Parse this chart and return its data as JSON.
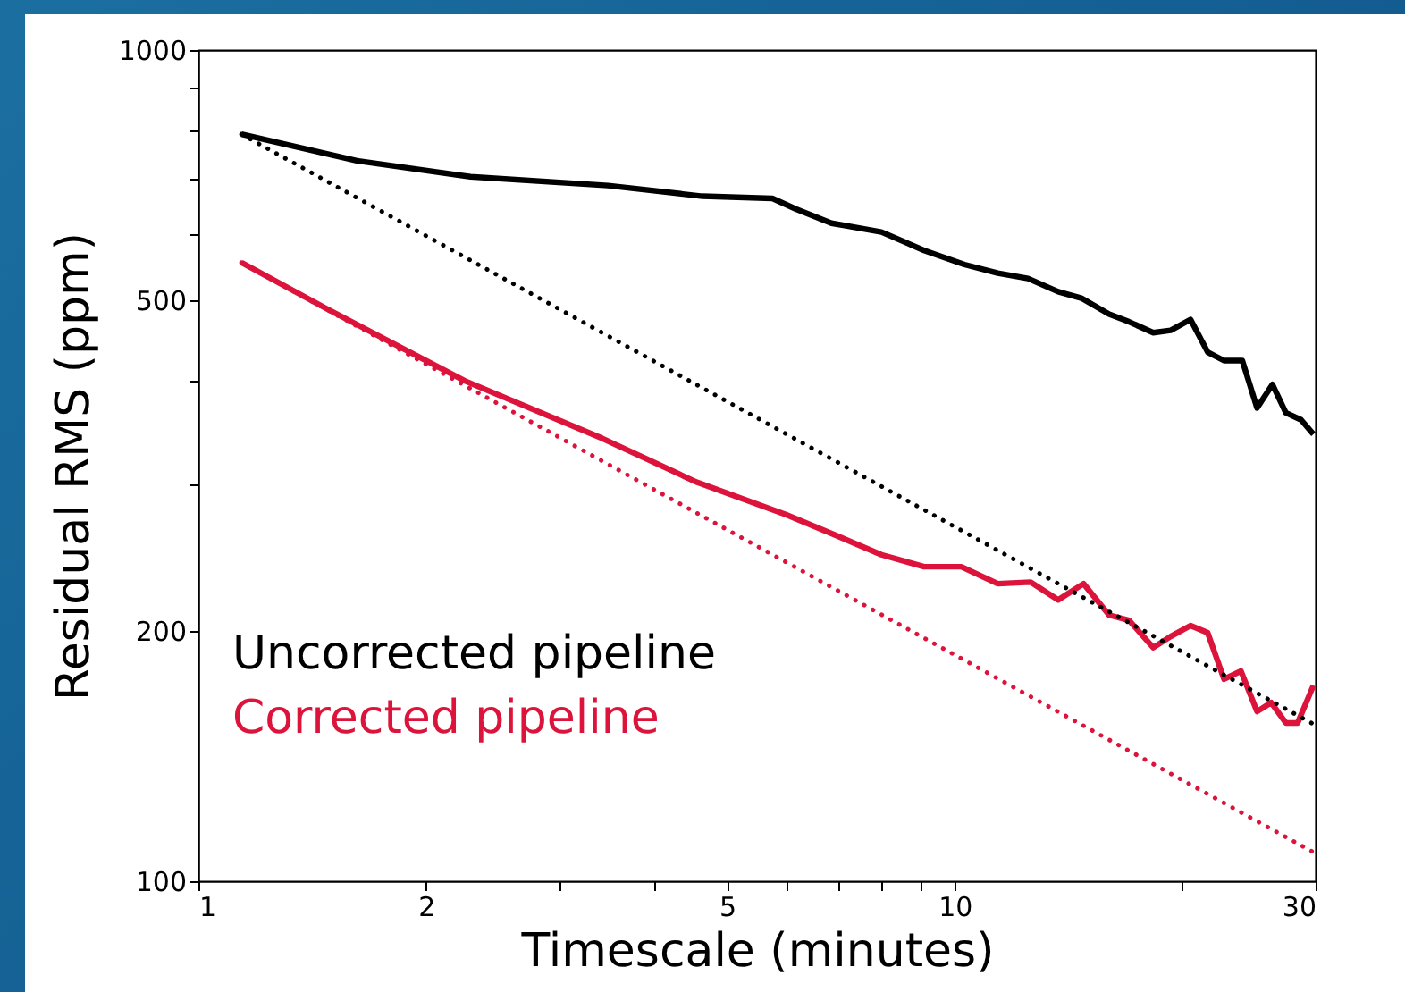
{
  "chart_data": {
    "type": "line",
    "xlabel": "Timescale (minutes)",
    "ylabel": "Residual RMS (ppm)",
    "log": "xy",
    "grid": false,
    "legend": "bottom left",
    "marker": "none",
    "xlim": [
      1,
      30
    ],
    "xticks": [
      1,
      2,
      {
        "value": 3,
        "label": null
      },
      {
        "value": 4,
        "label": null
      },
      5,
      {
        "value": 6,
        "label": null
      },
      {
        "value": 7,
        "label": null
      },
      {
        "value": 8,
        "label": null
      },
      {
        "value": 9,
        "label": null
      },
      10,
      {
        "value": 20,
        "label": null
      },
      30
    ],
    "ylim": [
      100,
      1000
    ],
    "yticks": [
      100,
      200,
      {
        "value": 300,
        "label": null
      },
      {
        "value": 400,
        "label": null
      },
      500,
      {
        "value": 600,
        "label": null
      },
      {
        "value": 700,
        "label": null
      },
      {
        "value": 800,
        "label": null
      },
      {
        "value": 900,
        "label": null
      },
      1000
    ],
    "series": [
      {
        "name": "Uncorrected pipeline",
        "color": "#000000",
        "line_style": "solid",
        "x": [
          1.14,
          1.62,
          2.29,
          3.48,
          4.64,
          5.74,
          6.16,
          6.87,
          8.0,
          9.11,
          10.3,
          11.4,
          12.5,
          13.7,
          14.7,
          16.0,
          17.0,
          18.3,
          19.3,
          20.5,
          21.6,
          22.7,
          24.0,
          25.1,
          26.3,
          27.4,
          28.7,
          29.8
        ],
        "values": [
          792,
          736,
          704,
          687,
          667,
          663,
          644,
          619,
          604,
          574,
          552,
          539,
          531,
          512,
          503,
          481,
          471,
          457,
          460,
          474,
          433,
          423,
          423,
          371,
          396,
          366,
          359,
          345
        ]
      },
      {
        "name": "Corrected pipeline",
        "color": "#dc143c",
        "line_style": "solid",
        "x": [
          1.14,
          1.48,
          2.25,
          3.42,
          4.56,
          5.99,
          6.94,
          8.0,
          9.11,
          10.2,
          11.4,
          12.6,
          13.7,
          14.8,
          16.0,
          17.0,
          18.3,
          19.3,
          20.5,
          21.6,
          22.7,
          23.9,
          25.1,
          26.2,
          27.4,
          28.4,
          29.8
        ],
        "values": [
          555,
          488,
          400,
          341,
          302,
          276,
          261,
          247,
          239,
          239,
          228,
          229,
          218,
          228,
          209,
          206,
          191,
          197,
          203,
          199,
          175,
          179,
          160,
          164,
          155,
          155,
          172
        ]
      },
      {
        "color": "#000000",
        "line_style": "dotted",
        "x": [
          1.14,
          30
        ],
        "values": [
          792,
          154
        ]
      },
      {
        "color": "#dc143c",
        "line_style": "dotted",
        "x": [
          1.14,
          30
        ],
        "values": [
          555,
          108
        ]
      }
    ]
  }
}
